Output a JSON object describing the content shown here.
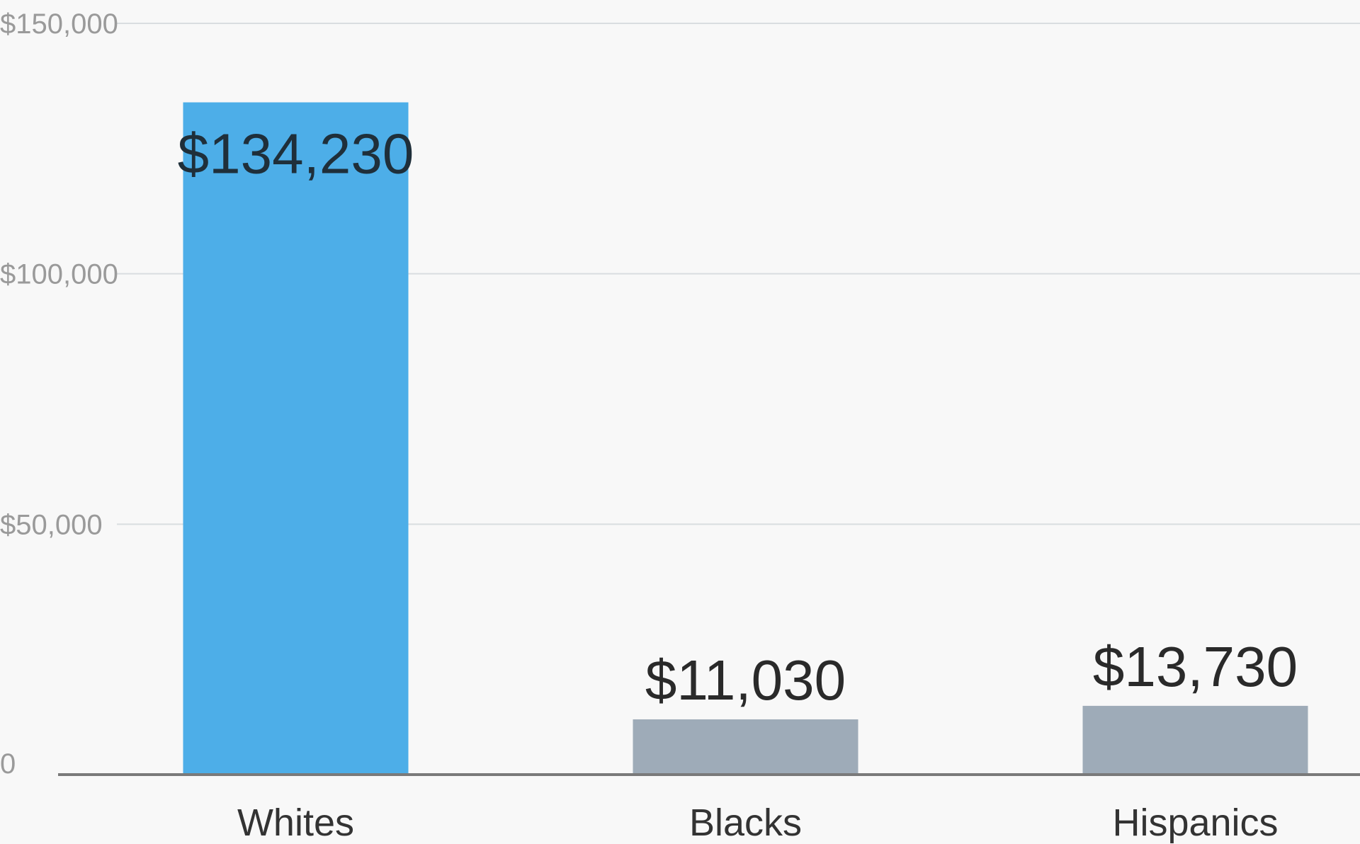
{
  "chart_data": {
    "type": "bar",
    "title": "",
    "xlabel": "",
    "ylabel": "",
    "categories": [
      "Whites",
      "Blacks",
      "Hispanics"
    ],
    "values": [
      134230,
      11030,
      13730
    ],
    "value_labels": [
      "$134,230",
      "$11,030",
      "$13,730"
    ],
    "ylim": [
      0,
      150000
    ],
    "yticks": [
      0,
      50000,
      100000,
      150000
    ],
    "ytick_labels": [
      "0",
      "$50,000",
      "$100,000",
      "$150,000"
    ],
    "grid": true,
    "legend": "none",
    "colors": {
      "highlight": "#4daee8",
      "default": "#9eabb8",
      "grid": "#d9dde0",
      "baseline": "#7a7a7a"
    },
    "highlight_index": 0
  }
}
